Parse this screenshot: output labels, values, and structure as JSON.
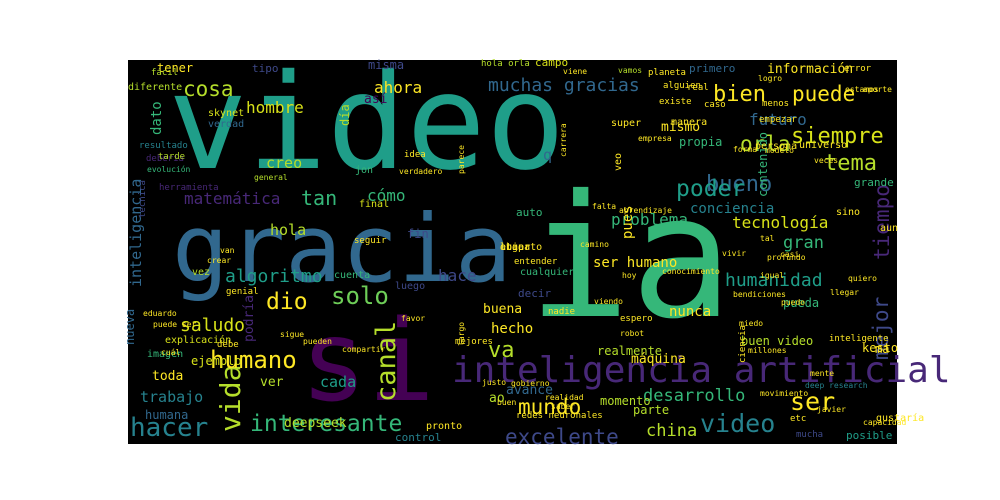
{
  "chart_data": {
    "type": "wordcloud",
    "background": "#000000",
    "words": [
      {
        "text": "video",
        "color": "#1f9e89"
      },
      {
        "text": "ia",
        "color": "#35b779"
      },
      {
        "text": "gracia",
        "color": "#31688e"
      },
      {
        "text": "si",
        "color": "#440154"
      },
      {
        "text": "inteligencia artificial",
        "color": "#482878"
      },
      {
        "text": "solo",
        "color": "#6ece58"
      },
      {
        "text": "canal",
        "color": "#b5de2b"
      },
      {
        "text": "mundo",
        "color": "#fde725"
      },
      {
        "text": "excelente",
        "color": "#3e4989"
      },
      {
        "text": "hacer",
        "color": "#26828e"
      },
      {
        "text": "interesante",
        "color": "#35b779"
      },
      {
        "text": "vida",
        "color": "#b5de2b"
      },
      {
        "text": "humano",
        "color": "#fde725"
      },
      {
        "text": "video",
        "color": "#26828e"
      },
      {
        "text": "ser",
        "color": "#fde725"
      },
      {
        "text": "bueno",
        "color": "#31688e"
      },
      {
        "text": "tema",
        "color": "#b5de2b"
      },
      {
        "text": "siempre",
        "color": "#d8e219"
      },
      {
        "text": "poder",
        "color": "#1f9e89"
      },
      {
        "text": "bien",
        "color": "#fde725"
      },
      {
        "text": "puede",
        "color": "#fde725"
      },
      {
        "text": "cosa",
        "color": "#b5de2b"
      },
      {
        "text": "mejor",
        "color": "#3e4989"
      },
      {
        "text": "tiempo",
        "color": "#482878"
      },
      {
        "text": "orla",
        "color": "#b5de2b"
      },
      {
        "text": "dio",
        "color": "#fde725"
      },
      {
        "text": "va",
        "color": "#b5de2b"
      },
      {
        "text": "tan",
        "color": "#35b779"
      },
      {
        "text": "gran",
        "color": "#35b779"
      },
      {
        "text": "humanidad",
        "color": "#1f9e89"
      },
      {
        "text": "china",
        "color": "#b5de2b"
      },
      {
        "text": "muchas gracias",
        "color": "#31688e"
      },
      {
        "text": "desarrollo",
        "color": "#35b779"
      },
      {
        "text": "algoritmo",
        "color": "#1f9e89"
      },
      {
        "text": "saludo",
        "color": "#d8e219"
      },
      {
        "text": "problema",
        "color": "#35b779"
      },
      {
        "text": "tecnología",
        "color": "#d8e219"
      },
      {
        "text": "hace",
        "color": "#3e4989"
      },
      {
        "text": "futuro",
        "color": "#31688e"
      },
      {
        "text": "hombre",
        "color": "#d8e219"
      },
      {
        "text": "matemática",
        "color": "#482878"
      },
      {
        "text": "cómo",
        "color": "#35b779"
      },
      {
        "text": "trabajo",
        "color": "#26828e"
      },
      {
        "text": "cada",
        "color": "#1f9e89"
      },
      {
        "text": "hola",
        "color": "#b5de2b"
      },
      {
        "text": "creo",
        "color": "#b5de2b"
      },
      {
        "text": "ahora",
        "color": "#fde725"
      },
      {
        "text": "conciencia",
        "color": "#26828e"
      },
      {
        "text": "pues",
        "color": "#fde725"
      },
      {
        "text": "hecho",
        "color": "#fde725"
      },
      {
        "text": "ser humano",
        "color": "#fde725"
      },
      {
        "text": "nunca",
        "color": "#fde725"
      },
      {
        "text": "inteligencia",
        "color": "#31688e"
      },
      {
        "text": "dato",
        "color": "#35b779"
      },
      {
        "text": "deepseek",
        "color": "#b5de2b"
      },
      {
        "text": "ver",
        "color": "#b5de2b"
      },
      {
        "text": "toda",
        "color": "#fde725"
      },
      {
        "text": "mismo",
        "color": "#fde725"
      },
      {
        "text": "información",
        "color": "#fde725"
      },
      {
        "text": "tener",
        "color": "#fde725"
      },
      {
        "text": "máquina",
        "color": "#fde725"
      },
      {
        "text": "buena",
        "color": "#fde725"
      },
      {
        "text": "ao",
        "color": "#b5de2b"
      },
      {
        "text": "avance",
        "color": "#31688e"
      },
      {
        "text": "misma",
        "color": "#3e4989"
      },
      {
        "text": "así",
        "color": "#440154"
      },
      {
        "text": "día",
        "color": "#b5de2b"
      },
      {
        "text": "q",
        "color": "#31688e"
      },
      {
        "text": "fin",
        "color": "#3e4989"
      },
      {
        "text": "podría",
        "color": "#482878"
      },
      {
        "text": "propia",
        "color": "#35b779"
      },
      {
        "text": "contenido",
        "color": "#35b779"
      },
      {
        "text": "ma",
        "color": "#fde725"
      },
      {
        "text": "kesto",
        "color": "#fde725"
      },
      {
        "text": "pueda",
        "color": "#35b779"
      },
      {
        "text": "buen video",
        "color": "#b5de2b"
      },
      {
        "text": "humana",
        "color": "#31688e"
      },
      {
        "text": "ejemplo",
        "color": "#d8e219"
      },
      {
        "text": "nueva",
        "color": "#31688e"
      },
      {
        "text": "realmente",
        "color": "#b5de2b"
      },
      {
        "text": "momento",
        "color": "#b5de2b"
      },
      {
        "text": "parte",
        "color": "#b5de2b"
      },
      {
        "text": "control",
        "color": "#26828e"
      },
      {
        "text": "campo",
        "color": "#d8e219"
      },
      {
        "text": "tipo",
        "color": "#3e4989"
      },
      {
        "text": "primero",
        "color": "#31688e"
      },
      {
        "text": "decir",
        "color": "#3e4989"
      },
      {
        "text": "auto",
        "color": "#35b779"
      },
      {
        "text": "grande",
        "color": "#35b779"
      },
      {
        "text": "posible",
        "color": "#1f9e89"
      },
      {
        "text": "explicación",
        "color": "#d8e219"
      },
      {
        "text": "imagen",
        "color": "#35b779"
      },
      {
        "text": "final",
        "color": "#d8e219"
      },
      {
        "text": "jon",
        "color": "#35b779"
      },
      {
        "text": "vez",
        "color": "#b5de2b"
      },
      {
        "text": "cuenta",
        "color": "#35b779"
      },
      {
        "text": "luego",
        "color": "#3e4989"
      },
      {
        "text": "cualquier",
        "color": "#35b779"
      },
      {
        "text": "skynet",
        "color": "#d8e219"
      },
      {
        "text": "verdad",
        "color": "#31688e"
      },
      {
        "text": "fácil",
        "color": "#b5de2b"
      },
      {
        "text": "resultado",
        "color": "#26828e"
      },
      {
        "text": "debería",
        "color": "#482878"
      },
      {
        "text": "evolución",
        "color": "#35b779"
      },
      {
        "text": "tecnica",
        "color": "#3e4989"
      },
      {
        "text": "herramienta",
        "color": "#482878"
      },
      {
        "text": "tarde",
        "color": "#b5de2b"
      },
      {
        "text": "general",
        "color": "#b5de2b"
      },
      {
        "text": "diferente",
        "color": "#b5de2b"
      },
      {
        "text": "hola orla",
        "color": "#b5de2b"
      },
      {
        "text": "viene",
        "color": "#fde725"
      },
      {
        "text": "vamos",
        "color": "#b5de2b"
      },
      {
        "text": "planeta",
        "color": "#fde725"
      },
      {
        "text": "alguien",
        "color": "#fde725"
      },
      {
        "text": "real",
        "color": "#fde725"
      },
      {
        "text": "caso",
        "color": "#fde725"
      },
      {
        "text": "existe",
        "color": "#fde725"
      },
      {
        "text": "menos",
        "color": "#fde725"
      },
      {
        "text": "empezar",
        "color": "#fde725"
      },
      {
        "text": "universo",
        "color": "#fde725"
      },
      {
        "text": "persona",
        "color": "#fde725"
      },
      {
        "text": "forma",
        "color": "#fde725"
      },
      {
        "text": "modelo",
        "color": "#fde725"
      },
      {
        "text": "veces",
        "color": "#fde725"
      },
      {
        "text": "super",
        "color": "#fde725"
      },
      {
        "text": "manera",
        "color": "#fde725"
      },
      {
        "text": "carrera",
        "color": "#fde725"
      },
      {
        "text": "veo",
        "color": "#fde725"
      },
      {
        "text": "entender",
        "color": "#fde725"
      },
      {
        "text": "sino",
        "color": "#fde725"
      },
      {
        "text": "aun",
        "color": "#fde725"
      },
      {
        "text": "vivir",
        "color": "#fde725"
      },
      {
        "text": "tal",
        "color": "#fde725"
      },
      {
        "text": "casi",
        "color": "#fde725"
      },
      {
        "text": "llegar",
        "color": "#fde725"
      },
      {
        "text": "bendiciones",
        "color": "#fde725"
      },
      {
        "text": "miedo",
        "color": "#fde725"
      },
      {
        "text": "inteligente",
        "color": "#fde725"
      },
      {
        "text": "millones",
        "color": "#fde725"
      },
      {
        "text": "ciencia",
        "color": "#fde725"
      },
      {
        "text": "deep research",
        "color": "#26828e"
      },
      {
        "text": "mente",
        "color": "#fde725"
      },
      {
        "text": "movimiento",
        "color": "#fde725"
      },
      {
        "text": "gustaría",
        "color": "#fde725"
      },
      {
        "text": "javier",
        "color": "#fde725"
      },
      {
        "text": "etc",
        "color": "#fde725"
      },
      {
        "text": "capacidad",
        "color": "#fde725"
      },
      {
        "text": "mucha",
        "color": "#3e4989"
      },
      {
        "text": "pronto",
        "color": "#fde725"
      },
      {
        "text": "redes neuronales",
        "color": "#fde725"
      },
      {
        "text": "buen",
        "color": "#fde725"
      },
      {
        "text": "justo",
        "color": "#fde725"
      },
      {
        "text": "saber",
        "color": "#fde725"
      },
      {
        "text": "realidad",
        "color": "#fde725"
      },
      {
        "text": "gobierno",
        "color": "#fde725"
      },
      {
        "text": "nadie",
        "color": "#fde725"
      },
      {
        "text": "espero",
        "color": "#fde725"
      },
      {
        "text": "robot",
        "color": "#fde725"
      },
      {
        "text": "viendo",
        "color": "#fde725"
      },
      {
        "text": "largo",
        "color": "#fde725"
      },
      {
        "text": "mejores",
        "color": "#fde725"
      },
      {
        "text": "compartir",
        "color": "#fde725"
      },
      {
        "text": "pueden",
        "color": "#fde725"
      },
      {
        "text": "sigue",
        "color": "#fde725"
      },
      {
        "text": "favor",
        "color": "#fde725"
      },
      {
        "text": "debe",
        "color": "#fde725"
      },
      {
        "text": "cuál",
        "color": "#fde725"
      },
      {
        "text": "puede ser",
        "color": "#fde725"
      },
      {
        "text": "eduardo",
        "color": "#fde725"
      },
      {
        "text": "genial",
        "color": "#fde725"
      },
      {
        "text": "seguir",
        "color": "#fde725"
      },
      {
        "text": "van",
        "color": "#fde725"
      },
      {
        "text": "crear",
        "color": "#fde725"
      },
      {
        "text": "idea",
        "color": "#fde725"
      },
      {
        "text": "verdadero",
        "color": "#fde725"
      },
      {
        "text": "parece",
        "color": "#fde725"
      },
      {
        "text": "camino",
        "color": "#fde725"
      },
      {
        "text": "conocimiento",
        "color": "#fde725"
      },
      {
        "text": "hoy",
        "color": "#fde725"
      },
      {
        "text": "falta",
        "color": "#fde725"
      },
      {
        "text": "aprendizaje",
        "color": "#fde725"
      },
      {
        "text": "error",
        "color": "#fde725"
      },
      {
        "text": "estamos",
        "color": "#fde725"
      },
      {
        "text": "quiero",
        "color": "#fde725"
      },
      {
        "text": "aporte",
        "color": "#fde725"
      },
      {
        "text": "empresa",
        "color": "#fde725"
      },
      {
        "text": "logro",
        "color": "#fde725"
      },
      {
        "text": "profundo",
        "color": "#fde725"
      },
      {
        "text": "igual",
        "color": "#fde725"
      },
      {
        "text": "puedo",
        "color": "#fde725"
      },
      {
        "text": "etapa",
        "color": "#fde725"
      },
      {
        "text": "lugar",
        "color": "#fde725"
      },
      {
        "text": "abierto",
        "color": "#fde725"
      }
    ]
  }
}
